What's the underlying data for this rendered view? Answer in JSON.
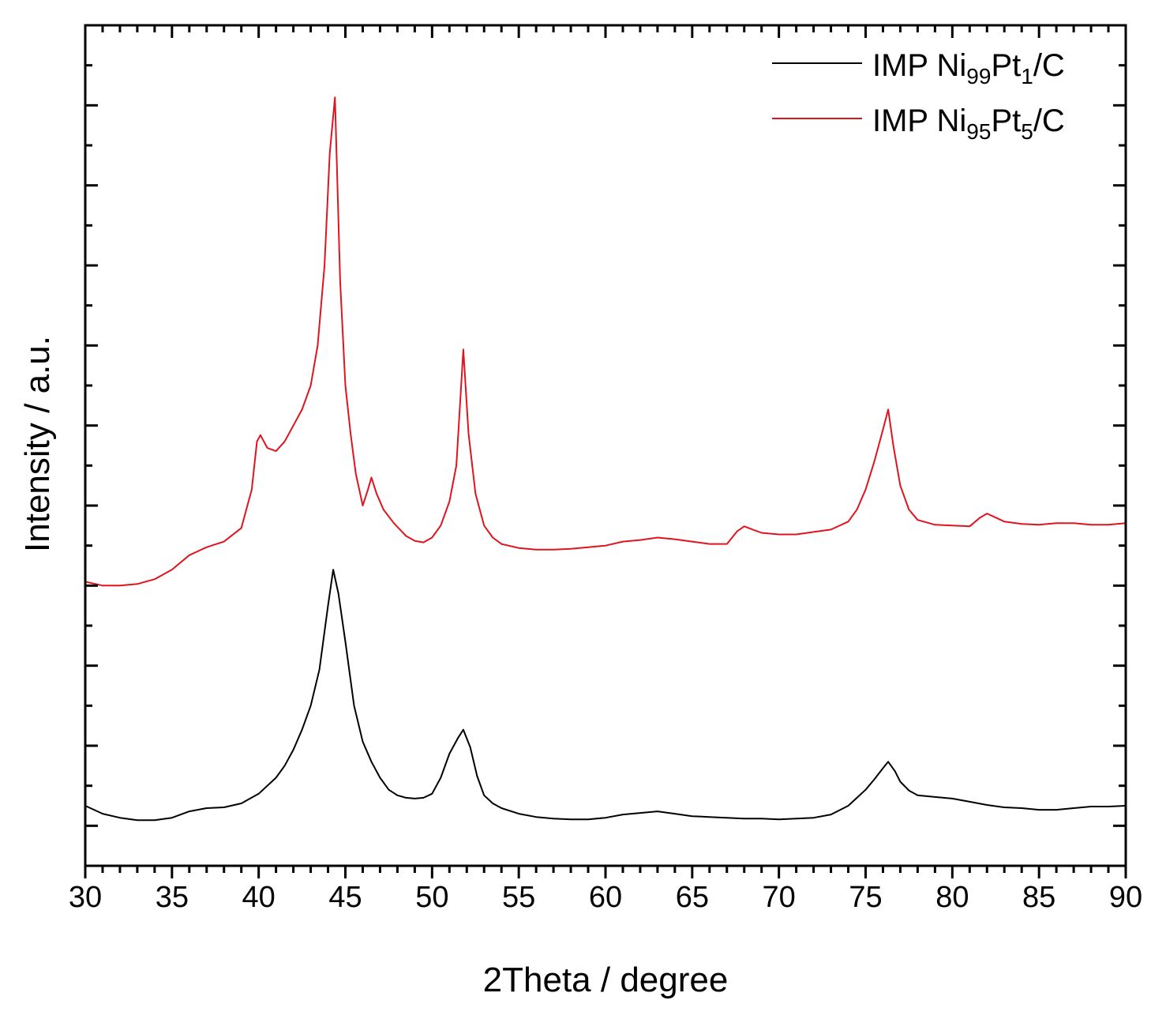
{
  "chart_data": {
    "type": "line",
    "title": "",
    "xlabel": "2Theta / degree",
    "ylabel": "Intensity / a.u.",
    "xlim": [
      30,
      90
    ],
    "ylim": [
      -0.5,
      10
    ],
    "x_ticks": [
      30,
      35,
      40,
      45,
      50,
      55,
      60,
      65,
      70,
      75,
      80,
      85,
      90
    ],
    "x_tick_labels": [
      "30",
      "35",
      "40",
      "45",
      "50",
      "55",
      "60",
      "65",
      "70",
      "75",
      "80",
      "85",
      "90"
    ],
    "y_tick_labels_shown": false,
    "grid": false,
    "legend_position": "top-right",
    "series": [
      {
        "name": "IMP Ni99Pt1/C",
        "name_parts": {
          "base1": "IMP Ni",
          "sub1": "99",
          "base2": "Pt",
          "sub2": "1",
          "base3": "/C"
        },
        "color": "#000000",
        "x": [
          30,
          31,
          32,
          33,
          34,
          35,
          36,
          37,
          38,
          39,
          40,
          41,
          41.5,
          42,
          42.5,
          43,
          43.5,
          44,
          44.3,
          44.6,
          45,
          45.5,
          46,
          46.5,
          47,
          47.5,
          48,
          48.5,
          49,
          49.5,
          50,
          50.5,
          51,
          51.5,
          51.8,
          52.2,
          52.6,
          53,
          53.5,
          54,
          55,
          56,
          57,
          58,
          59,
          60,
          61,
          62,
          63,
          64,
          65,
          66,
          67,
          68,
          69,
          70,
          71,
          72,
          73,
          74,
          74.5,
          75,
          75.5,
          76,
          76.3,
          76.7,
          77,
          77.5,
          78,
          79,
          80,
          81,
          82,
          83,
          84,
          85,
          86,
          87,
          88,
          89,
          90
        ],
        "y": [
          0.25,
          0.15,
          0.1,
          0.07,
          0.07,
          0.1,
          0.18,
          0.22,
          0.23,
          0.28,
          0.4,
          0.6,
          0.75,
          0.95,
          1.2,
          1.5,
          1.95,
          2.75,
          3.2,
          2.9,
          2.3,
          1.5,
          1.05,
          0.8,
          0.6,
          0.45,
          0.38,
          0.35,
          0.34,
          0.35,
          0.4,
          0.6,
          0.9,
          1.1,
          1.2,
          0.98,
          0.62,
          0.38,
          0.28,
          0.22,
          0.15,
          0.11,
          0.09,
          0.08,
          0.08,
          0.1,
          0.14,
          0.16,
          0.18,
          0.15,
          0.12,
          0.11,
          0.1,
          0.09,
          0.09,
          0.08,
          0.09,
          0.1,
          0.14,
          0.25,
          0.35,
          0.45,
          0.58,
          0.72,
          0.8,
          0.68,
          0.55,
          0.44,
          0.38,
          0.36,
          0.34,
          0.3,
          0.26,
          0.23,
          0.22,
          0.2,
          0.2,
          0.22,
          0.24,
          0.24,
          0.25
        ]
      },
      {
        "name": "IMP Ni95Pt5/C",
        "name_parts": {
          "base1": "IMP Ni",
          "sub1": "95",
          "base2": "Pt",
          "sub2": "5",
          "base3": "/C"
        },
        "color": "#e0141e",
        "x": [
          30,
          31,
          32,
          33,
          34,
          35,
          36,
          37,
          38,
          39,
          39.6,
          39.9,
          40.1,
          40.5,
          41,
          41.5,
          42,
          42.5,
          43,
          43.4,
          43.8,
          44.1,
          44.4,
          44.7,
          45,
          45.3,
          45.6,
          46,
          46.3,
          46.5,
          46.8,
          47.2,
          47.8,
          48.5,
          49,
          49.5,
          50,
          50.5,
          51,
          51.4,
          51.8,
          52.1,
          52.5,
          53,
          53.5,
          54,
          55,
          56,
          57,
          58,
          59,
          60,
          61,
          62,
          63,
          64,
          65,
          66,
          67,
          67.6,
          68,
          68.5,
          69,
          70,
          71,
          72,
          73,
          74,
          74.5,
          75,
          75.5,
          76,
          76.3,
          76.6,
          77,
          77.5,
          78,
          79,
          80,
          81,
          81.6,
          82,
          82.5,
          83,
          84,
          85,
          86,
          87,
          88,
          89,
          90
        ],
        "y": [
          3.05,
          3.0,
          3.0,
          3.02,
          3.08,
          3.2,
          3.38,
          3.48,
          3.55,
          3.72,
          4.2,
          4.8,
          4.88,
          4.72,
          4.68,
          4.8,
          5.0,
          5.2,
          5.5,
          6.0,
          7.0,
          8.4,
          9.1,
          6.8,
          5.5,
          4.9,
          4.4,
          4.0,
          4.2,
          4.35,
          4.15,
          3.95,
          3.78,
          3.62,
          3.56,
          3.54,
          3.6,
          3.75,
          4.05,
          4.5,
          5.95,
          4.9,
          4.15,
          3.75,
          3.6,
          3.52,
          3.47,
          3.45,
          3.45,
          3.46,
          3.48,
          3.5,
          3.55,
          3.57,
          3.6,
          3.58,
          3.55,
          3.52,
          3.52,
          3.68,
          3.74,
          3.7,
          3.66,
          3.64,
          3.64,
          3.67,
          3.7,
          3.8,
          3.95,
          4.2,
          4.55,
          4.95,
          5.2,
          4.75,
          4.25,
          3.95,
          3.82,
          3.76,
          3.75,
          3.74,
          3.85,
          3.9,
          3.85,
          3.8,
          3.77,
          3.76,
          3.78,
          3.78,
          3.76,
          3.76,
          3.78
        ]
      }
    ]
  }
}
